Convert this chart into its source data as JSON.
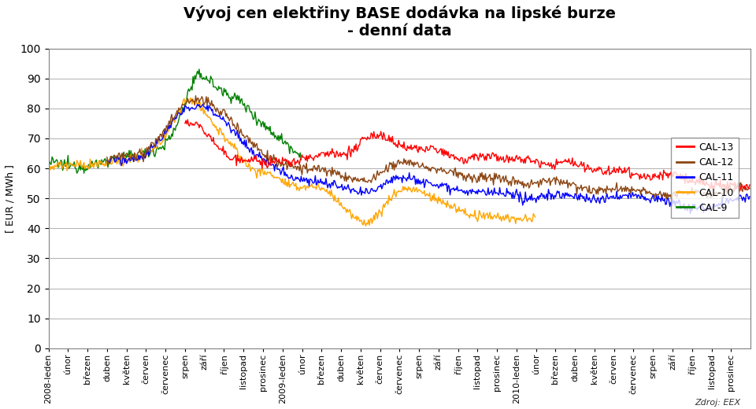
{
  "title_line1": "Vývoj cen elektřiny BASE dodávka na lipské burze",
  "title_line2": "- denní data",
  "ylabel": "[ EUR / MWh ]",
  "ylim": [
    0,
    100
  ],
  "yticks": [
    0,
    10,
    20,
    30,
    40,
    50,
    60,
    70,
    80,
    90,
    100
  ],
  "xlabel_ticks": [
    "2008-leden",
    "únor",
    "březen",
    "duben",
    "květen",
    "červen",
    "červenec",
    "srpen",
    "září",
    "říjen",
    "listopad",
    "prosinec",
    "2009-leden",
    "únor",
    "březen",
    "duben",
    "květen",
    "červen",
    "červenec",
    "srpen",
    "září",
    "říjen",
    "listopad",
    "prosinec",
    "2010-leden",
    "únor",
    "březen",
    "duben",
    "květen",
    "červen",
    "červenec",
    "srpen",
    "září",
    "říjen",
    "listopad",
    "prosinec"
  ],
  "legend_labels": [
    "CAL-13",
    "CAL-12",
    "CAL-11",
    "CAL-10",
    "CAL-9"
  ],
  "line_colors": [
    "#ff0000",
    "#8B4513",
    "#0000ff",
    "#ffa500",
    "#008000"
  ],
  "background_color": "#ffffff",
  "plot_bg_color": "#ffffff",
  "grid_color": "#b0b0b0",
  "title_fontsize": 14,
  "axis_fontsize": 8,
  "legend_fontsize": 9,
  "figwidth": 9.6,
  "figheight": 5.2,
  "source_text": "Zdroj: EEX"
}
